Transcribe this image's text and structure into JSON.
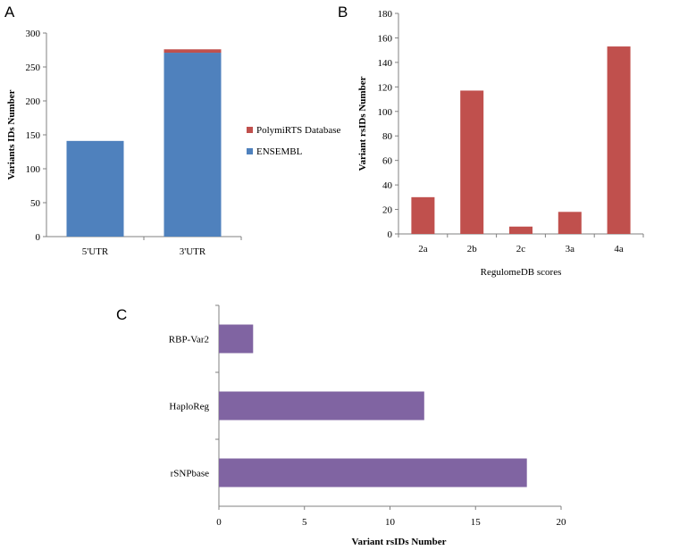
{
  "chart_data": [
    {
      "panel": "A",
      "type": "bar",
      "stacked": true,
      "categories": [
        "5'UTR",
        "3'UTR"
      ],
      "series": [
        {
          "name": "ENSEMBL",
          "values": [
            141,
            271
          ],
          "color": "#4F81BD"
        },
        {
          "name": "PolymiRTS Database",
          "values": [
            0,
            5
          ],
          "color": "#C0504D"
        }
      ],
      "ylabel": "Variants IDs Number",
      "xlabel": "",
      "ylim": [
        0,
        300
      ],
      "yticks": [
        0,
        50,
        100,
        150,
        200,
        250,
        300
      ],
      "legend_position": "right"
    },
    {
      "panel": "B",
      "type": "bar",
      "categories": [
        "2a",
        "2b",
        "2c",
        "3a",
        "4a"
      ],
      "values": [
        30,
        117,
        6,
        18,
        153
      ],
      "color": "#C0504D",
      "ylabel": "Variant rsIDs Number",
      "xlabel": "RegulomeDB scores",
      "ylim": [
        0,
        180
      ],
      "yticks": [
        0,
        20,
        40,
        60,
        80,
        100,
        120,
        140,
        160,
        180
      ]
    },
    {
      "panel": "C",
      "type": "bar",
      "orientation": "horizontal",
      "categories": [
        "rSNPbase",
        "HaploReg",
        "RBP-Var2"
      ],
      "values": [
        18,
        12,
        2
      ],
      "color": "#8064A2",
      "xlabel": "Variant rsIDs Number",
      "ylabel": "",
      "xlim": [
        0,
        20
      ],
      "xticks": [
        0,
        5,
        10,
        15,
        20
      ]
    }
  ]
}
